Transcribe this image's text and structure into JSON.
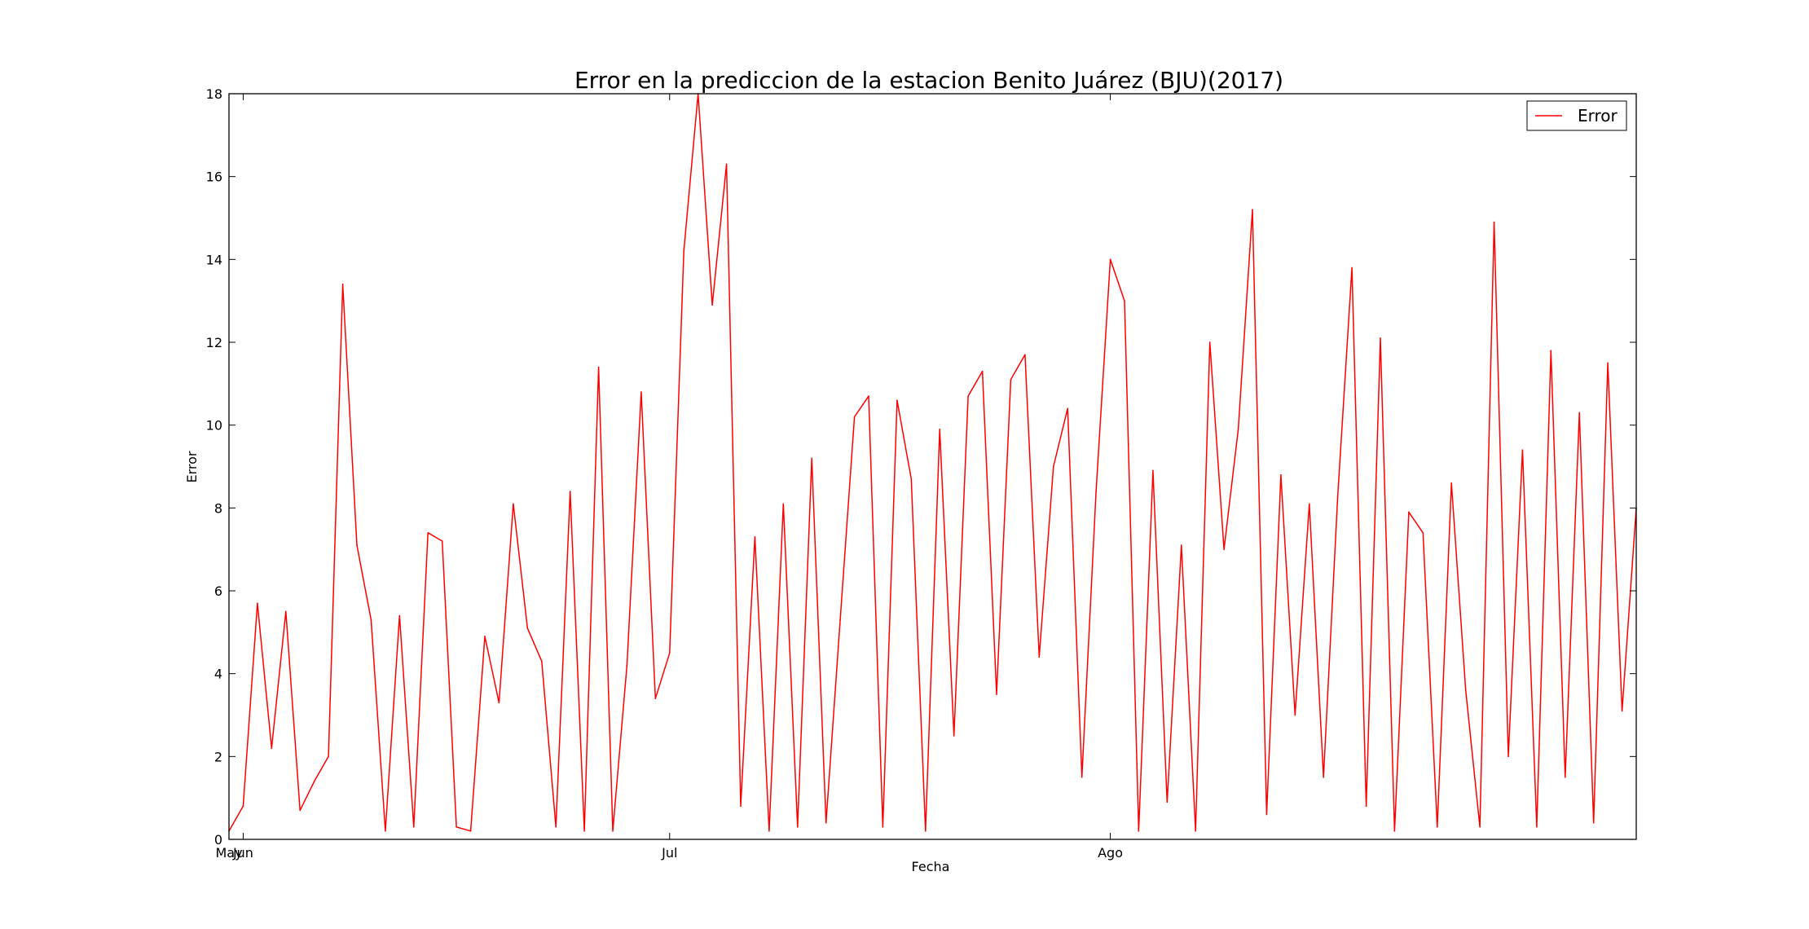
{
  "chart_data": {
    "type": "line",
    "title": "Error en la prediccion de la estacion Benito Juárez (BJU)(2017)",
    "xlabel": "Fecha",
    "ylabel": "Error",
    "ylim": [
      0,
      18
    ],
    "y_ticks": [
      0,
      2,
      4,
      6,
      8,
      10,
      12,
      14,
      16,
      18
    ],
    "x_ticks": [
      {
        "label": "May",
        "date": "2017-05-31"
      },
      {
        "label": "Jun",
        "date": "2017-06-01"
      },
      {
        "label": "Jul",
        "date": "2017-07-01"
      },
      {
        "label": "Ago",
        "date": "2017-08-01"
      }
    ],
    "xlim": [
      "2017-05-31",
      "2017-09-07"
    ],
    "grid": false,
    "legend": {
      "position": "top-right",
      "entries": [
        "Error"
      ]
    },
    "colors": {
      "series": "#ff0000",
      "axes": "#000000",
      "background": "#ffffff"
    },
    "series": [
      {
        "name": "Error",
        "x": [
          "2017-05-31",
          "2017-06-01",
          "2017-06-02",
          "2017-06-03",
          "2017-06-04",
          "2017-06-05",
          "2017-06-06",
          "2017-06-07",
          "2017-06-08",
          "2017-06-09",
          "2017-06-10",
          "2017-06-11",
          "2017-06-12",
          "2017-06-13",
          "2017-06-14",
          "2017-06-15",
          "2017-06-16",
          "2017-06-17",
          "2017-06-18",
          "2017-06-19",
          "2017-06-20",
          "2017-06-21",
          "2017-06-22",
          "2017-06-23",
          "2017-06-24",
          "2017-06-25",
          "2017-06-26",
          "2017-06-27",
          "2017-06-28",
          "2017-06-29",
          "2017-06-30",
          "2017-07-01",
          "2017-07-02",
          "2017-07-03",
          "2017-07-04",
          "2017-07-05",
          "2017-07-06",
          "2017-07-07",
          "2017-07-08",
          "2017-07-09",
          "2017-07-10",
          "2017-07-11",
          "2017-07-12",
          "2017-07-13",
          "2017-07-14",
          "2017-07-15",
          "2017-07-16",
          "2017-07-17",
          "2017-07-18",
          "2017-07-19",
          "2017-07-20",
          "2017-07-21",
          "2017-07-22",
          "2017-07-23",
          "2017-07-24",
          "2017-07-25",
          "2017-07-26",
          "2017-07-27",
          "2017-07-28",
          "2017-07-29",
          "2017-07-30",
          "2017-07-31",
          "2017-08-01",
          "2017-08-02",
          "2017-08-03",
          "2017-08-04",
          "2017-08-05",
          "2017-08-06",
          "2017-08-07",
          "2017-08-08",
          "2017-08-09",
          "2017-08-10",
          "2017-08-11",
          "2017-08-12",
          "2017-08-13",
          "2017-08-14",
          "2017-08-15",
          "2017-08-16",
          "2017-08-17",
          "2017-08-18",
          "2017-08-19",
          "2017-08-20",
          "2017-08-21",
          "2017-08-22",
          "2017-08-23",
          "2017-08-24",
          "2017-08-25",
          "2017-08-26",
          "2017-08-27",
          "2017-08-28",
          "2017-08-29",
          "2017-08-30",
          "2017-08-31",
          "2017-09-01",
          "2017-09-02",
          "2017-09-03",
          "2017-09-04",
          "2017-09-05",
          "2017-09-06",
          "2017-09-07"
        ],
        "values": [
          0.2,
          0.8,
          5.7,
          2.2,
          5.5,
          0.7,
          1.4,
          2.0,
          13.4,
          7.1,
          5.3,
          0.2,
          5.4,
          0.3,
          7.4,
          7.2,
          0.3,
          0.2,
          4.9,
          3.3,
          8.1,
          5.1,
          4.3,
          0.3,
          8.4,
          0.2,
          11.4,
          0.2,
          4.2,
          10.8,
          3.4,
          4.5,
          14.2,
          18.0,
          12.9,
          16.3,
          0.8,
          7.3,
          0.2,
          8.1,
          0.3,
          9.2,
          0.4,
          5.3,
          10.2,
          10.7,
          0.3,
          10.6,
          8.7,
          0.2,
          9.9,
          2.5,
          10.7,
          11.3,
          3.5,
          11.1,
          11.7,
          4.4,
          9.0,
          10.4,
          1.5,
          8.4,
          14.0,
          13.0,
          0.2,
          8.9,
          0.9,
          7.1,
          0.2,
          12.0,
          7.0,
          9.9,
          15.2,
          0.6,
          8.8,
          3.0,
          8.1,
          1.5,
          8.3,
          13.8,
          0.8,
          12.1,
          0.2,
          7.9,
          7.4,
          0.3,
          8.6,
          3.6,
          0.3,
          14.9,
          2.0,
          9.4,
          0.3,
          11.8,
          1.5,
          10.3,
          0.4,
          11.5,
          3.1,
          8.0
        ]
      }
    ]
  }
}
